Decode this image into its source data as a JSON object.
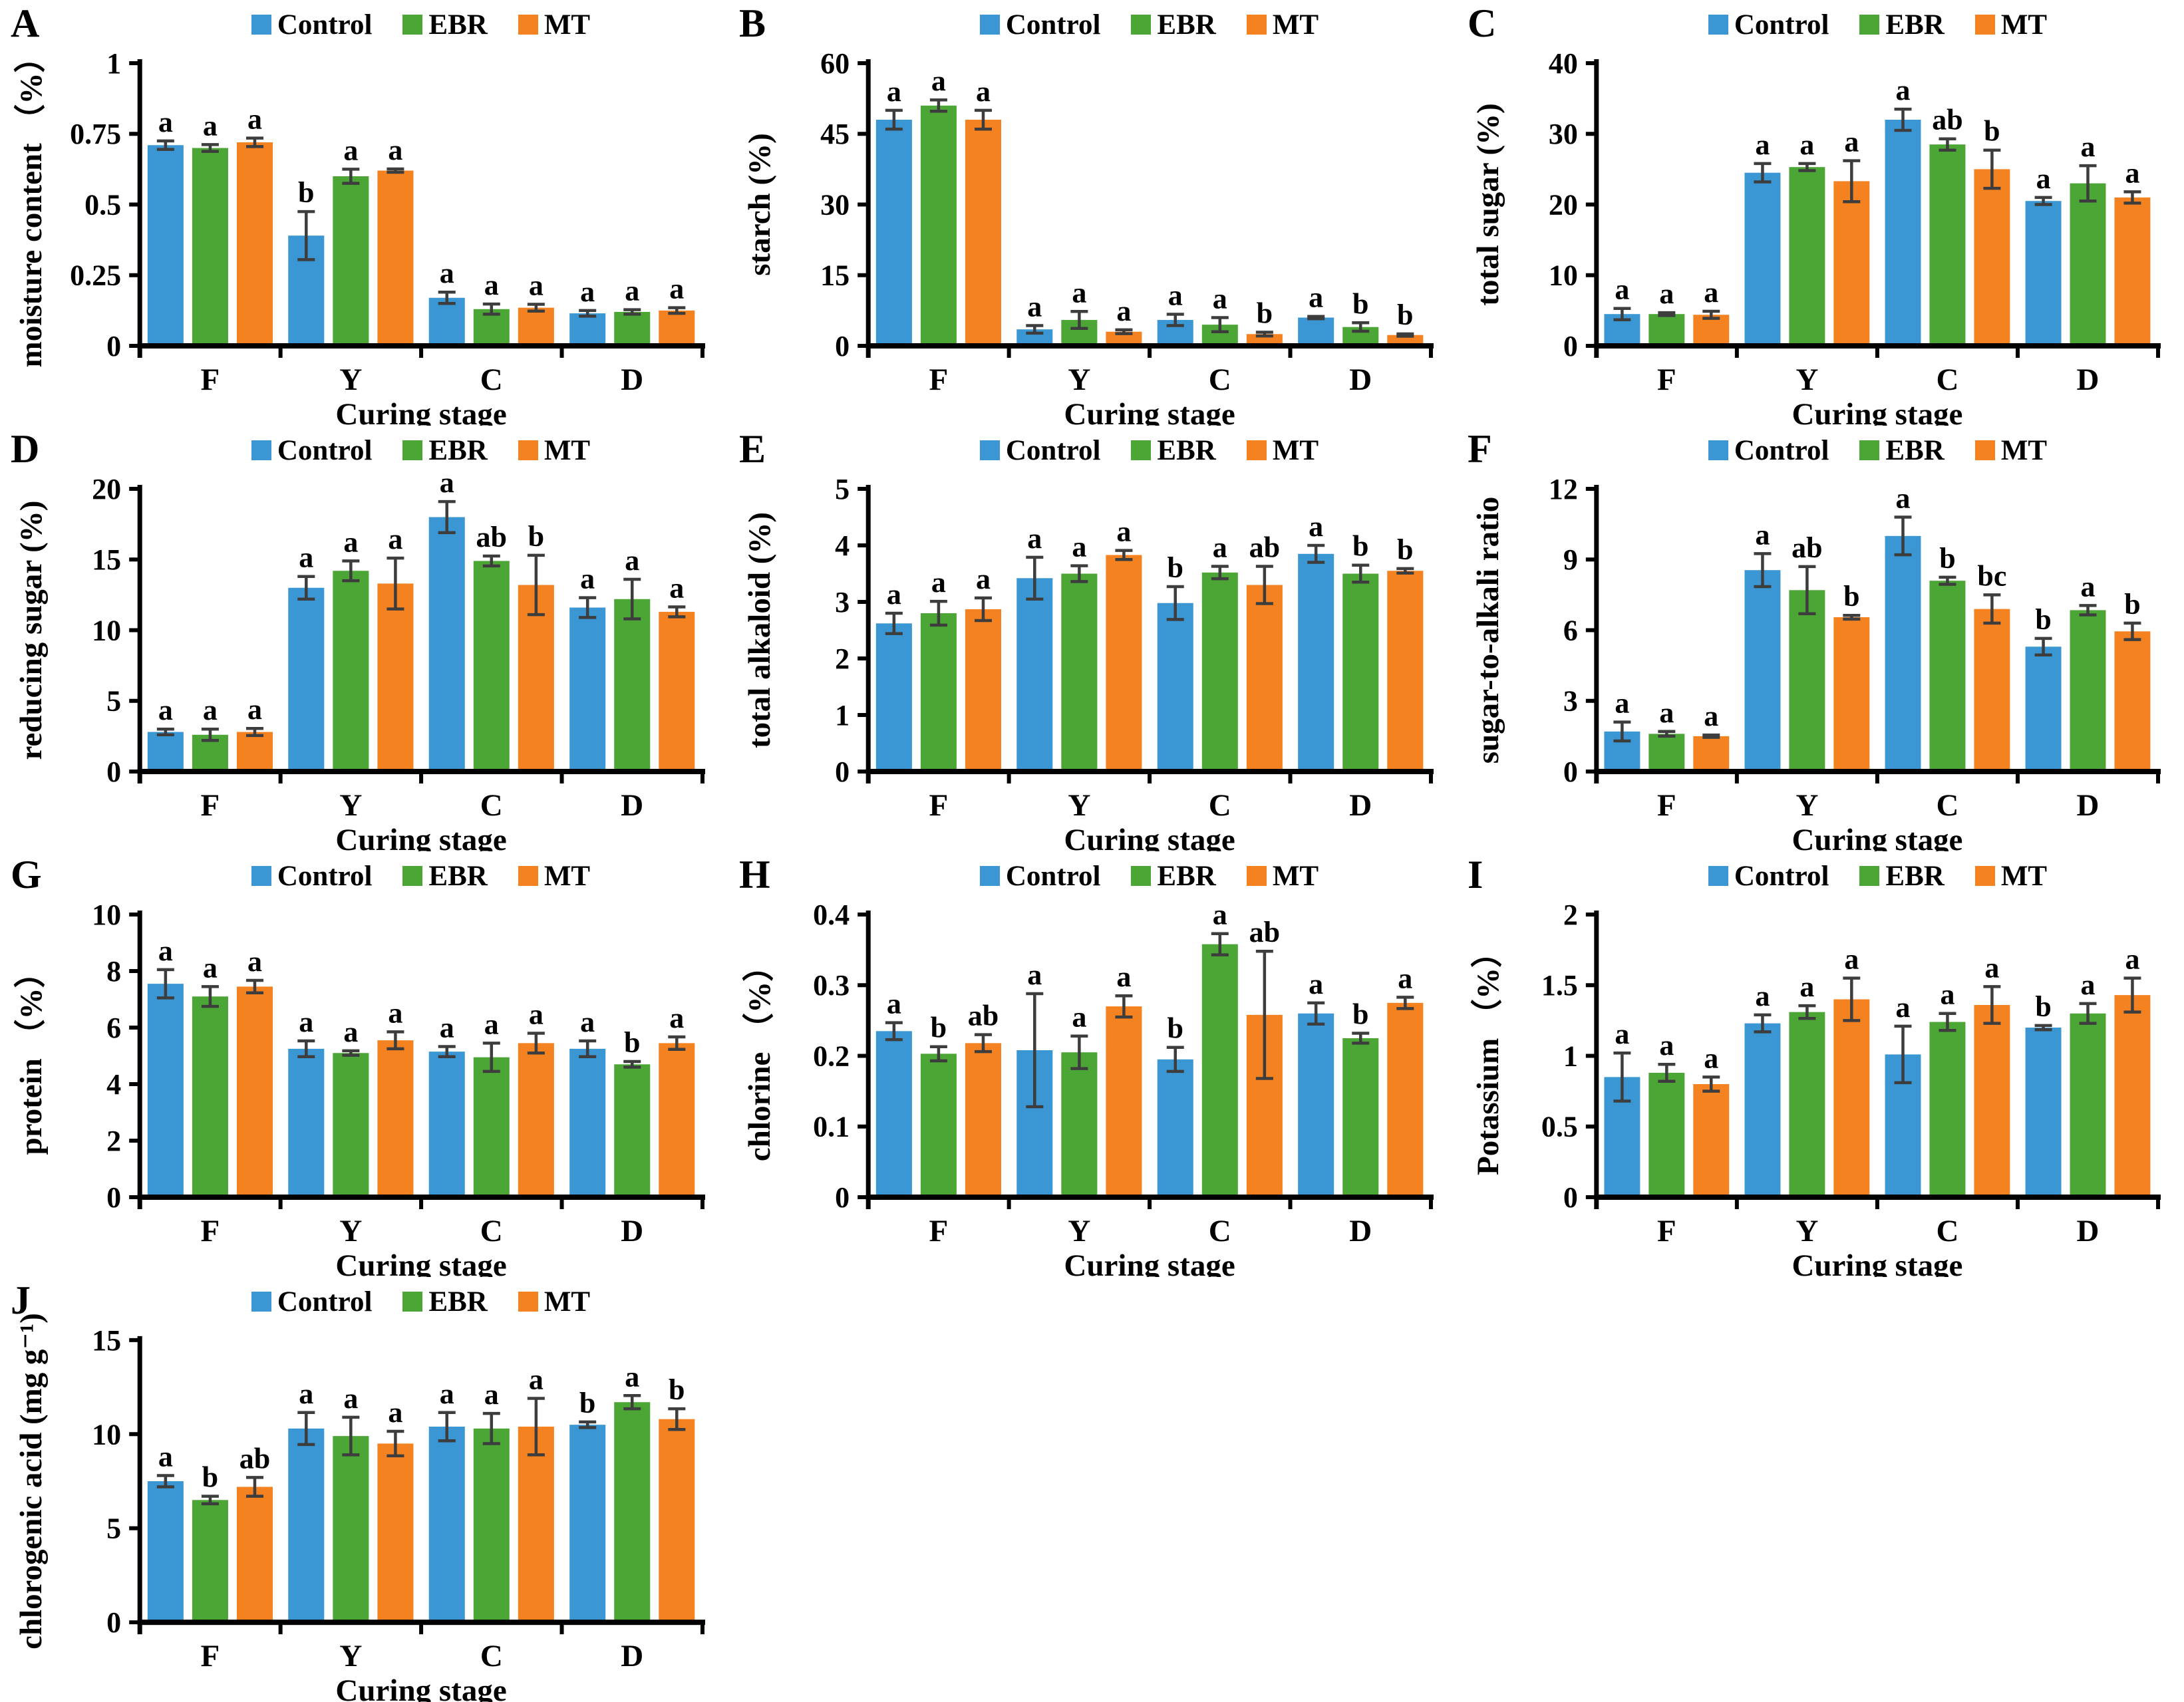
{
  "axis": {
    "xlabel": "Curing stage",
    "categories": [
      "F",
      "Y",
      "C",
      "D"
    ]
  },
  "legend": {
    "items": [
      {
        "label": "Control",
        "color": "#3B97D4"
      },
      {
        "label": "EBR",
        "color": "#4CA636"
      },
      {
        "label": "MT",
        "color": "#F58221"
      }
    ]
  },
  "style": {
    "axis_color": "#000000",
    "error_bar_color": "#3d3d3d",
    "background": "#ffffff"
  },
  "chart_data": [
    {
      "panel": "A",
      "type": "bar",
      "ylabel": "moisture content （%）",
      "xlabel": "Curing stage",
      "categories": [
        "F",
        "Y",
        "C",
        "D"
      ],
      "ylim": [
        0,
        1
      ],
      "yticks": [
        0,
        0.25,
        0.5,
        0.75,
        1
      ],
      "series": [
        {
          "name": "Control",
          "values": [
            0.71,
            0.39,
            0.17,
            0.115
          ],
          "errors": [
            0.015,
            0.085,
            0.02,
            0.01
          ],
          "letters": [
            "a",
            "b",
            "a",
            "a"
          ]
        },
        {
          "name": "EBR",
          "values": [
            0.7,
            0.6,
            0.13,
            0.12
          ],
          "errors": [
            0.012,
            0.025,
            0.018,
            0.008
          ],
          "letters": [
            "a",
            "a",
            "a",
            "a"
          ]
        },
        {
          "name": "MT",
          "values": [
            0.72,
            0.62,
            0.135,
            0.125
          ],
          "errors": [
            0.015,
            0.006,
            0.012,
            0.01
          ],
          "letters": [
            "a",
            "a",
            "a",
            "a"
          ]
        }
      ]
    },
    {
      "panel": "B",
      "type": "bar",
      "ylabel": "starch (%)",
      "xlabel": "Curing stage",
      "categories": [
        "F",
        "Y",
        "C",
        "D"
      ],
      "ylim": [
        0,
        60
      ],
      "yticks": [
        0,
        15,
        30,
        45,
        60
      ],
      "series": [
        {
          "name": "Control",
          "values": [
            48,
            3.5,
            5.5,
            6.0
          ],
          "errors": [
            2.0,
            0.8,
            1.2,
            0.25
          ],
          "letters": [
            "a",
            "a",
            "a",
            "a"
          ]
        },
        {
          "name": "EBR",
          "values": [
            51,
            5.5,
            4.5,
            4.0
          ],
          "errors": [
            1.2,
            1.8,
            1.5,
            0.9
          ],
          "letters": [
            "a",
            "a",
            "a",
            "b"
          ]
        },
        {
          "name": "MT",
          "values": [
            48,
            3.0,
            2.5,
            2.3
          ],
          "errors": [
            2.0,
            0.4,
            0.4,
            0.25
          ],
          "letters": [
            "a",
            "a",
            "b",
            "b"
          ]
        }
      ]
    },
    {
      "panel": "C",
      "type": "bar",
      "ylabel": "total sugar (%)",
      "xlabel": "Curing stage",
      "categories": [
        "F",
        "Y",
        "C",
        "D"
      ],
      "ylim": [
        0,
        40
      ],
      "yticks": [
        0,
        10,
        20,
        30,
        40
      ],
      "series": [
        {
          "name": "Control",
          "values": [
            4.5,
            24.5,
            32.0,
            20.5
          ],
          "errors": [
            0.8,
            1.3,
            1.5,
            0.5
          ],
          "letters": [
            "a",
            "a",
            "a",
            "a"
          ]
        },
        {
          "name": "EBR",
          "values": [
            4.5,
            25.3,
            28.5,
            23.0
          ],
          "errors": [
            0.2,
            0.5,
            0.8,
            2.5
          ],
          "letters": [
            "a",
            "a",
            "ab",
            "a"
          ]
        },
        {
          "name": "MT",
          "values": [
            4.4,
            23.3,
            25.0,
            21.0
          ],
          "errors": [
            0.5,
            2.9,
            2.7,
            0.8
          ],
          "letters": [
            "a",
            "a",
            "b",
            "a"
          ]
        }
      ]
    },
    {
      "panel": "D",
      "type": "bar",
      "ylabel": "reducing sugar (%)",
      "xlabel": "Curing stage",
      "categories": [
        "F",
        "Y",
        "C",
        "D"
      ],
      "ylim": [
        0,
        20
      ],
      "yticks": [
        0,
        5,
        10,
        15,
        20
      ],
      "series": [
        {
          "name": "Control",
          "values": [
            2.8,
            13.0,
            18.0,
            11.6
          ],
          "errors": [
            0.2,
            0.8,
            1.1,
            0.7
          ],
          "letters": [
            "a",
            "a",
            "a",
            "a"
          ]
        },
        {
          "name": "EBR",
          "values": [
            2.6,
            14.2,
            14.9,
            12.2
          ],
          "errors": [
            0.4,
            0.7,
            0.35,
            1.4
          ],
          "letters": [
            "a",
            "a",
            "ab",
            "a"
          ]
        },
        {
          "name": "MT",
          "values": [
            2.8,
            13.3,
            13.2,
            11.3
          ],
          "errors": [
            0.25,
            1.8,
            2.1,
            0.35
          ],
          "letters": [
            "a",
            "a",
            "b",
            "a"
          ]
        }
      ]
    },
    {
      "panel": "E",
      "type": "bar",
      "ylabel": "total alkaloid (%)",
      "xlabel": "Curing stage",
      "categories": [
        "F",
        "Y",
        "C",
        "D"
      ],
      "ylim": [
        0,
        5
      ],
      "yticks": [
        0,
        1,
        2,
        3,
        4,
        5
      ],
      "series": [
        {
          "name": "Control",
          "values": [
            2.62,
            3.42,
            2.98,
            3.85
          ],
          "errors": [
            0.18,
            0.37,
            0.29,
            0.15
          ],
          "letters": [
            "a",
            "a",
            "b",
            "a"
          ]
        },
        {
          "name": "EBR",
          "values": [
            2.8,
            3.5,
            3.52,
            3.5
          ],
          "errors": [
            0.21,
            0.14,
            0.11,
            0.15
          ],
          "letters": [
            "a",
            "a",
            "a",
            "b"
          ]
        },
        {
          "name": "MT",
          "values": [
            2.87,
            3.83,
            3.3,
            3.55
          ],
          "errors": [
            0.2,
            0.08,
            0.33,
            0.04
          ],
          "letters": [
            "a",
            "a",
            "ab",
            "b"
          ]
        }
      ]
    },
    {
      "panel": "F",
      "type": "bar",
      "ylabel": "sugar-to-alkali ratio",
      "xlabel": "Curing stage",
      "categories": [
        "F",
        "Y",
        "C",
        "D"
      ],
      "ylim": [
        0,
        12
      ],
      "yticks": [
        0,
        3,
        6,
        9,
        12
      ],
      "series": [
        {
          "name": "Control",
          "values": [
            1.7,
            8.55,
            10.0,
            5.3
          ],
          "errors": [
            0.4,
            0.7,
            0.8,
            0.35
          ],
          "letters": [
            "a",
            "a",
            "a",
            "b"
          ]
        },
        {
          "name": "EBR",
          "values": [
            1.6,
            7.7,
            8.1,
            6.85
          ],
          "errors": [
            0.1,
            1.0,
            0.15,
            0.2
          ],
          "letters": [
            "a",
            "ab",
            "b",
            "a"
          ]
        },
        {
          "name": "MT",
          "values": [
            1.5,
            6.55,
            6.9,
            5.95
          ],
          "errors": [
            0.05,
            0.08,
            0.6,
            0.35
          ],
          "letters": [
            "a",
            "b",
            "bc",
            "b"
          ]
        }
      ]
    },
    {
      "panel": "G",
      "type": "bar",
      "ylabel": "protein （%）",
      "xlabel": "Curing stage",
      "categories": [
        "F",
        "Y",
        "C",
        "D"
      ],
      "ylim": [
        0,
        10
      ],
      "yticks": [
        0,
        2,
        4,
        6,
        8,
        10
      ],
      "series": [
        {
          "name": "Control",
          "values": [
            7.55,
            5.25,
            5.15,
            5.25
          ],
          "errors": [
            0.5,
            0.28,
            0.18,
            0.28
          ],
          "letters": [
            "a",
            "a",
            "a",
            "a"
          ]
        },
        {
          "name": "EBR",
          "values": [
            7.1,
            5.1,
            4.95,
            4.7
          ],
          "errors": [
            0.35,
            0.08,
            0.5,
            0.1
          ],
          "letters": [
            "a",
            "a",
            "a",
            "b"
          ]
        },
        {
          "name": "MT",
          "values": [
            7.45,
            5.55,
            5.45,
            5.45
          ],
          "errors": [
            0.22,
            0.3,
            0.35,
            0.22
          ],
          "letters": [
            "a",
            "a",
            "a",
            "a"
          ]
        }
      ]
    },
    {
      "panel": "H",
      "type": "bar",
      "ylabel": "chlorine （%）",
      "xlabel": "Curing stage",
      "categories": [
        "F",
        "Y",
        "C",
        "D"
      ],
      "ylim": [
        0,
        0.4
      ],
      "yticks": [
        0,
        0.1,
        0.2,
        0.3,
        0.4
      ],
      "series": [
        {
          "name": "Control",
          "values": [
            0.235,
            0.208,
            0.195,
            0.26
          ],
          "errors": [
            0.012,
            0.08,
            0.017,
            0.015
          ],
          "letters": [
            "a",
            "a",
            "b",
            "a"
          ]
        },
        {
          "name": "EBR",
          "values": [
            0.203,
            0.205,
            0.358,
            0.225
          ],
          "errors": [
            0.01,
            0.023,
            0.015,
            0.007
          ],
          "letters": [
            "b",
            "a",
            "a",
            "b"
          ]
        },
        {
          "name": "MT",
          "values": [
            0.218,
            0.27,
            0.258,
            0.275
          ],
          "errors": [
            0.012,
            0.015,
            0.09,
            0.008
          ],
          "letters": [
            "ab",
            "a",
            "ab",
            "a"
          ]
        }
      ]
    },
    {
      "panel": "I",
      "type": "bar",
      "ylabel": "Potassium （%）",
      "xlabel": "Curing stage",
      "categories": [
        "F",
        "Y",
        "C",
        "D"
      ],
      "ylim": [
        0,
        2
      ],
      "yticks": [
        0,
        0.5,
        1,
        1.5,
        2
      ],
      "series": [
        {
          "name": "Control",
          "values": [
            0.85,
            1.23,
            1.01,
            1.2
          ],
          "errors": [
            0.17,
            0.06,
            0.2,
            0.015
          ],
          "letters": [
            "a",
            "a",
            "a",
            "b"
          ]
        },
        {
          "name": "EBR",
          "values": [
            0.88,
            1.31,
            1.24,
            1.3
          ],
          "errors": [
            0.06,
            0.045,
            0.06,
            0.07
          ],
          "letters": [
            "a",
            "a",
            "a",
            "a"
          ]
        },
        {
          "name": "MT",
          "values": [
            0.8,
            1.4,
            1.36,
            1.43
          ],
          "errors": [
            0.05,
            0.15,
            0.13,
            0.12
          ],
          "letters": [
            "a",
            "a",
            "a",
            "a"
          ]
        }
      ]
    },
    {
      "panel": "J",
      "type": "bar",
      "ylabel": "chlorogenic acid (mg g⁻¹)",
      "xlabel": "Curing stage",
      "categories": [
        "F",
        "Y",
        "C",
        "D"
      ],
      "ylim": [
        0,
        15
      ],
      "yticks": [
        0,
        5,
        10,
        15
      ],
      "series": [
        {
          "name": "Control",
          "values": [
            7.5,
            10.3,
            10.4,
            10.5
          ],
          "errors": [
            0.3,
            0.85,
            0.75,
            0.15
          ],
          "letters": [
            "a",
            "a",
            "a",
            "b"
          ]
        },
        {
          "name": "EBR",
          "values": [
            6.5,
            9.9,
            10.3,
            11.7
          ],
          "errors": [
            0.2,
            1.0,
            0.8,
            0.35
          ],
          "letters": [
            "b",
            "a",
            "a",
            "a"
          ]
        },
        {
          "name": "MT",
          "values": [
            7.2,
            9.5,
            10.4,
            10.8
          ],
          "errors": [
            0.5,
            0.65,
            1.5,
            0.55
          ],
          "letters": [
            "ab",
            "a",
            "a",
            "b"
          ]
        }
      ]
    }
  ]
}
